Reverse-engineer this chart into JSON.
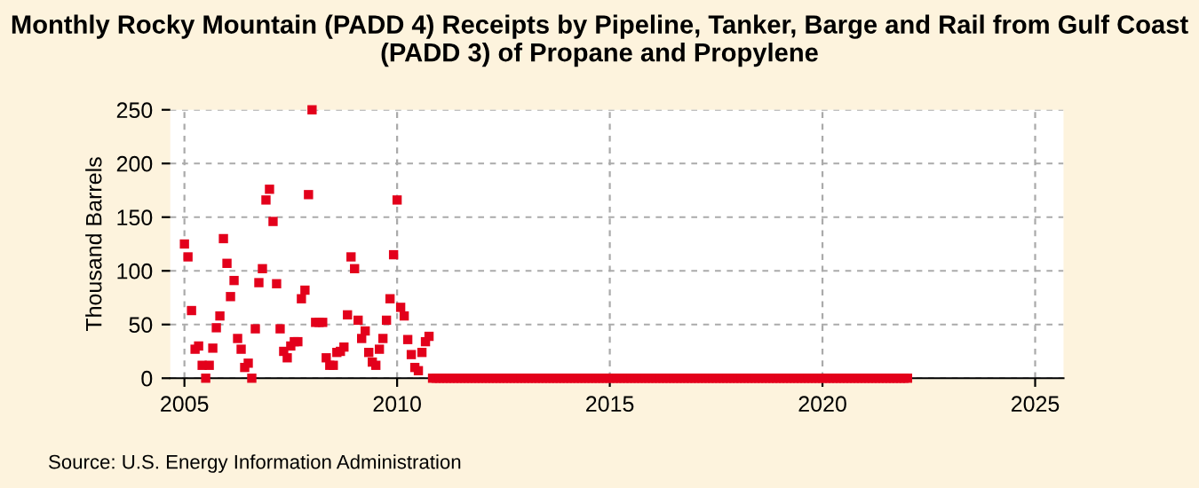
{
  "chart_data": {
    "type": "scatter",
    "title": "Monthly Rocky Mountain (PADD 4) Receipts by Pipeline, Tanker, Barge and Rail from Gulf Coast (PADD 3) of Propane and Propylene",
    "ylabel": "Thousand Barrels",
    "annotations": [
      "Source: U.S. Energy Information Administration"
    ],
    "x": [
      "2005-01",
      "2005-02",
      "2005-03",
      "2005-04",
      "2005-05",
      "2005-06",
      "2005-07",
      "2005-08",
      "2005-09",
      "2005-10",
      "2005-11",
      "2005-12",
      "2006-01",
      "2006-02",
      "2006-03",
      "2006-04",
      "2006-05",
      "2006-06",
      "2006-07",
      "2006-08",
      "2006-09",
      "2006-10",
      "2006-11",
      "2006-12",
      "2007-01",
      "2007-02",
      "2007-03",
      "2007-04",
      "2007-05",
      "2007-06",
      "2007-07",
      "2007-08",
      "2007-09",
      "2007-10",
      "2007-11",
      "2007-12",
      "2008-01",
      "2008-02",
      "2008-03",
      "2008-04",
      "2008-05",
      "2008-06",
      "2008-07",
      "2008-08",
      "2008-09",
      "2008-10",
      "2008-11",
      "2008-12",
      "2009-01",
      "2009-02",
      "2009-03",
      "2009-04",
      "2009-05",
      "2009-06",
      "2009-07",
      "2009-08",
      "2009-09",
      "2009-10",
      "2009-11",
      "2009-12",
      "2010-01",
      "2010-02",
      "2010-03",
      "2010-04",
      "2010-05",
      "2010-06",
      "2010-07",
      "2010-08",
      "2010-09",
      "2010-10",
      "2010-11",
      "2010-12",
      "2011-01",
      "2011-02",
      "2011-03",
      "2011-04",
      "2011-05",
      "2011-06",
      "2011-07",
      "2011-08",
      "2011-09",
      "2011-10",
      "2011-11",
      "2011-12",
      "2012-01",
      "2012-02",
      "2012-03",
      "2012-04",
      "2012-05",
      "2012-06",
      "2012-07",
      "2012-08",
      "2012-09",
      "2012-10",
      "2012-11",
      "2012-12",
      "2013-01",
      "2013-02",
      "2013-03",
      "2013-04",
      "2013-05",
      "2013-06",
      "2013-07",
      "2013-08",
      "2013-09",
      "2013-10",
      "2013-11",
      "2013-12",
      "2014-01",
      "2014-02",
      "2014-03",
      "2014-04",
      "2014-05",
      "2014-06",
      "2014-07",
      "2014-08",
      "2014-09",
      "2014-10",
      "2014-11",
      "2014-12",
      "2015-01",
      "2015-02",
      "2015-03",
      "2015-04",
      "2015-05",
      "2015-06",
      "2015-07",
      "2015-08",
      "2015-09",
      "2015-10",
      "2015-11",
      "2015-12",
      "2016-01",
      "2016-02",
      "2016-03",
      "2016-04",
      "2016-05",
      "2016-06",
      "2016-07",
      "2016-08",
      "2016-09",
      "2016-10",
      "2016-11",
      "2016-12",
      "2017-01",
      "2017-02",
      "2017-03",
      "2017-04",
      "2017-05",
      "2017-06",
      "2017-07",
      "2017-08",
      "2017-09",
      "2017-10",
      "2017-11",
      "2017-12",
      "2018-01",
      "2018-02",
      "2018-03",
      "2018-04",
      "2018-05",
      "2018-06",
      "2018-07",
      "2018-08",
      "2018-09",
      "2018-10",
      "2018-11",
      "2018-12",
      "2019-01",
      "2019-02",
      "2019-03",
      "2019-04",
      "2019-05",
      "2019-06",
      "2019-07",
      "2019-08",
      "2019-09",
      "2019-10",
      "2019-11",
      "2019-12",
      "2020-01",
      "2020-02",
      "2020-03",
      "2020-04",
      "2020-05",
      "2020-06",
      "2020-07",
      "2020-08",
      "2020-09",
      "2020-10",
      "2020-11",
      "2020-12",
      "2021-01",
      "2021-02",
      "2021-03",
      "2021-04",
      "2021-05",
      "2021-06",
      "2021-07",
      "2021-08",
      "2021-09",
      "2021-10",
      "2021-11",
      "2021-12",
      "2022-01"
    ],
    "series": [
      {
        "color": "#e3001b",
        "values": [
          125,
          113,
          63,
          27,
          30,
          12,
          0,
          12,
          28,
          47,
          58,
          130,
          107,
          76,
          91,
          37,
          27,
          10,
          14,
          0,
          46,
          89,
          102,
          166,
          176,
          146,
          88,
          46,
          25,
          19,
          30,
          34,
          34,
          74,
          82,
          171,
          250,
          52,
          52,
          52,
          19,
          12,
          12,
          24,
          25,
          29,
          59,
          113,
          102,
          54,
          37,
          44,
          24,
          15,
          12,
          27,
          37,
          54,
          74,
          115,
          166,
          66,
          58,
          36,
          22,
          10,
          7,
          24,
          34,
          39,
          0,
          0,
          0,
          0,
          0,
          0,
          0,
          0,
          0,
          0,
          0,
          0,
          0,
          0,
          0,
          0,
          0,
          0,
          0,
          0,
          0,
          0,
          0,
          0,
          0,
          0,
          0,
          0,
          0,
          0,
          0,
          0,
          0,
          0,
          0,
          0,
          0,
          0,
          0,
          0,
          0,
          0,
          0,
          0,
          0,
          0,
          0,
          0,
          0,
          0,
          0,
          0,
          0,
          0,
          0,
          0,
          0,
          0,
          0,
          0,
          0,
          0,
          0,
          0,
          0,
          0,
          0,
          0,
          0,
          0,
          0,
          0,
          0,
          0,
          0,
          0,
          0,
          0,
          0,
          0,
          0,
          0,
          0,
          0,
          0,
          0,
          0,
          0,
          0,
          0,
          0,
          0,
          0,
          0,
          0,
          0,
          0,
          0,
          0,
          0,
          0,
          0,
          0,
          0,
          0,
          0,
          0,
          0,
          0,
          0,
          0,
          0,
          0,
          0,
          0,
          0,
          0,
          0,
          0,
          0,
          0,
          0,
          0,
          0,
          0,
          0,
          0,
          0,
          0,
          0,
          0,
          0,
          0,
          0,
          0
        ]
      }
    ],
    "xlim": [
      "2004-09",
      "2025-09"
    ],
    "xticks": [
      "2005",
      "2010",
      "2015",
      "2020",
      "2025"
    ],
    "ylim": [
      0,
      250
    ],
    "yticks": [
      0,
      50,
      100,
      150,
      200,
      250
    ],
    "grid": true,
    "marker": "square"
  }
}
